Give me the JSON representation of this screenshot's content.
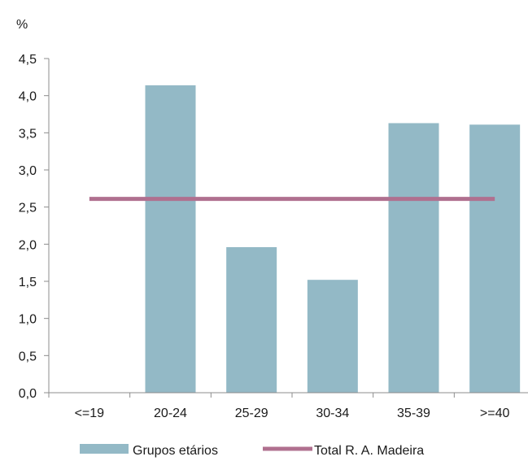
{
  "chart_data": {
    "type": "bar",
    "ylabel": "%",
    "categories": [
      "<=19",
      "20-24",
      "25-29",
      "30-34",
      "35-39",
      ">=40"
    ],
    "series": [
      {
        "name": "Grupos etários",
        "type": "bar",
        "values": [
          0,
          4.14,
          1.96,
          1.52,
          3.63,
          3.61
        ],
        "color": "#93b9c6"
      },
      {
        "name": "Total R. A. Madeira",
        "type": "line",
        "values": [
          2.61,
          2.61,
          2.61,
          2.61,
          2.61,
          2.61
        ],
        "color": "#b0708f"
      }
    ],
    "ylim": [
      0,
      4.5
    ],
    "yticks": [
      "0,0",
      "0,5",
      "1,0",
      "1,5",
      "2,0",
      "2,5",
      "3,0",
      "3,5",
      "4,0",
      "4,5"
    ],
    "ytick_values": [
      0,
      0.5,
      1,
      1.5,
      2,
      2.5,
      3,
      3.5,
      4,
      4.5
    ],
    "grid": false,
    "legend_position": "bottom"
  }
}
